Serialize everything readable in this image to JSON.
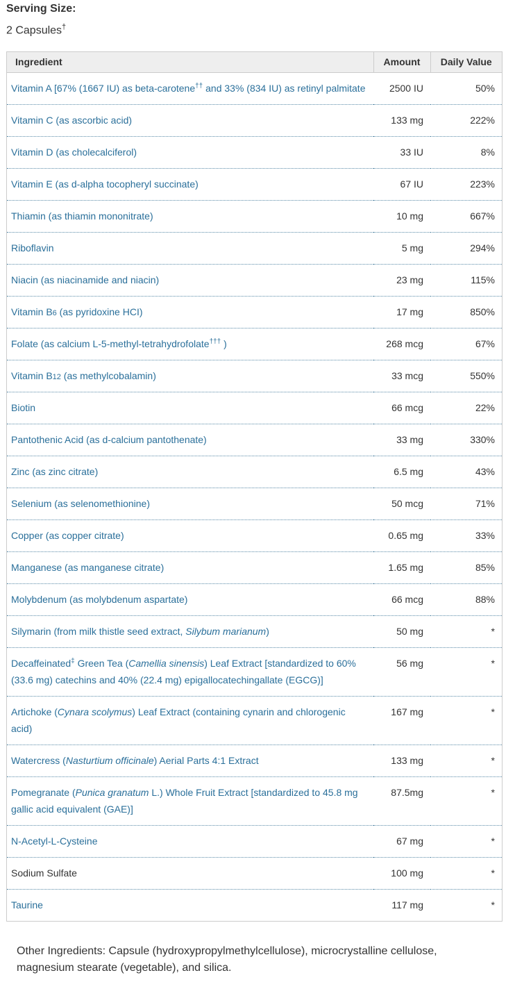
{
  "serving": {
    "title": "Serving Size:",
    "value": "2 Capsules",
    "value_mark": "†"
  },
  "table": {
    "headers": {
      "ingredient": "Ingredient",
      "amount": "Amount",
      "daily_value": "Daily Value"
    },
    "rows": [
      {
        "parts": [
          {
            "t": "Vitamin A [67% (1667 IU) as beta-carotene"
          },
          {
            "t": "††",
            "sup": true
          },
          {
            "t": " and 33% (834 IU) as retinyl palmitate"
          }
        ],
        "amount": "2500 IU",
        "dv": "50%"
      },
      {
        "parts": [
          {
            "t": "Vitamin C (as ascorbic acid)"
          }
        ],
        "amount": "133 mg",
        "dv": "222%"
      },
      {
        "parts": [
          {
            "t": "Vitamin D (as cholecalciferol)"
          }
        ],
        "amount": "33 IU",
        "dv": "8%"
      },
      {
        "parts": [
          {
            "t": "Vitamin E (as d-alpha tocopheryl succinate)"
          }
        ],
        "amount": "67 IU",
        "dv": "223%"
      },
      {
        "parts": [
          {
            "t": "Thiamin (as thiamin mononitrate)"
          }
        ],
        "amount": "10 mg",
        "dv": "667%"
      },
      {
        "parts": [
          {
            "t": "Riboflavin"
          }
        ],
        "amount": "5 mg",
        "dv": "294%"
      },
      {
        "parts": [
          {
            "t": "Niacin (as niacinamide and niacin)"
          }
        ],
        "amount": "23 mg",
        "dv": "115%"
      },
      {
        "parts": [
          {
            "t": "Vitamin B"
          },
          {
            "t": "6",
            "sub": true
          },
          {
            "t": " (as pyridoxine HCI)"
          }
        ],
        "amount": "17 mg",
        "dv": "850%"
      },
      {
        "parts": [
          {
            "t": "Folate (as calcium L-5-methyl-tetrahydrofolate"
          },
          {
            "t": "†††",
            "sup": true
          },
          {
            "t": " )"
          }
        ],
        "amount": "268 mcg",
        "dv": "67%"
      },
      {
        "parts": [
          {
            "t": "Vitamin B"
          },
          {
            "t": "12",
            "sub": true
          },
          {
            "t": " (as methylcobalamin)"
          }
        ],
        "amount": "33 mcg",
        "dv": "550%"
      },
      {
        "parts": [
          {
            "t": "Biotin"
          }
        ],
        "amount": "66 mcg",
        "dv": "22%"
      },
      {
        "parts": [
          {
            "t": "Pantothenic Acid (as d-calcium pantothenate)"
          }
        ],
        "amount": "33 mg",
        "dv": "330%"
      },
      {
        "parts": [
          {
            "t": "Zinc (as zinc citrate)"
          }
        ],
        "amount": "6.5 mg",
        "dv": "43%"
      },
      {
        "parts": [
          {
            "t": "Selenium (as selenomethionine)"
          }
        ],
        "amount": "50 mcg",
        "dv": "71%"
      },
      {
        "parts": [
          {
            "t": "Copper (as copper citrate)"
          }
        ],
        "amount": "0.65 mg",
        "dv": "33%"
      },
      {
        "parts": [
          {
            "t": "Manganese (as manganese citrate)"
          }
        ],
        "amount": "1.65 mg",
        "dv": "85%"
      },
      {
        "parts": [
          {
            "t": "Molybdenum (as molybdenum aspartate)"
          }
        ],
        "amount": "66 mcg",
        "dv": "88%"
      },
      {
        "parts": [
          {
            "t": "Silymarin (from milk thistle seed extract, "
          },
          {
            "t": "Silybum marianum",
            "em": true
          },
          {
            "t": ")"
          }
        ],
        "amount": "50 mg",
        "dv": "*"
      },
      {
        "parts": [
          {
            "t": "Decaffeinated"
          },
          {
            "t": "‡",
            "sup": true
          },
          {
            "t": " Green Tea ("
          },
          {
            "t": "Camellia sinensis",
            "em": true
          },
          {
            "t": ") Leaf Extract [standardized to 60% (33.6 mg) catechins and 40% (22.4 mg) epigallocatechingallate (EGCG)]"
          }
        ],
        "amount": "56 mg",
        "dv": "*"
      },
      {
        "parts": [
          {
            "t": "Artichoke ("
          },
          {
            "t": "Cynara scolymus",
            "em": true
          },
          {
            "t": ") Leaf Extract (containing cynarin and chlorogenic acid)"
          }
        ],
        "amount": "167 mg",
        "dv": "*"
      },
      {
        "parts": [
          {
            "t": "Watercress ("
          },
          {
            "t": "Nasturtium officinale",
            "em": true
          },
          {
            "t": ") Aerial Parts 4:1 Extract"
          }
        ],
        "amount": "133 mg",
        "dv": "*"
      },
      {
        "parts": [
          {
            "t": "Pomegranate ("
          },
          {
            "t": "Punica granatum",
            "em": true
          },
          {
            "t": " L.) Whole Fruit Extract [standardized to 45.8 mg gallic acid equivalent (GAE)]"
          }
        ],
        "amount": "87.5mg",
        "dv": "*"
      },
      {
        "parts": [
          {
            "t": "N-Acetyl-L-Cysteine"
          }
        ],
        "amount": "67 mg",
        "dv": "*"
      },
      {
        "parts": [
          {
            "t": "Sodium Sulfate"
          }
        ],
        "plain": true,
        "amount": "100 mg",
        "dv": "*"
      },
      {
        "parts": [
          {
            "t": "Taurine"
          }
        ],
        "amount": "117 mg",
        "dv": "*"
      }
    ]
  },
  "other_ingredients": "Other Ingredients: Capsule (hydroxypropylmethylcellulose), microcrystalline cellulose, magnesium stearate (vegetable), and silica.",
  "colors": {
    "link": "#2a6f9a",
    "text": "#333333",
    "header_bg": "#eeeeee",
    "border": "#cccccc"
  }
}
